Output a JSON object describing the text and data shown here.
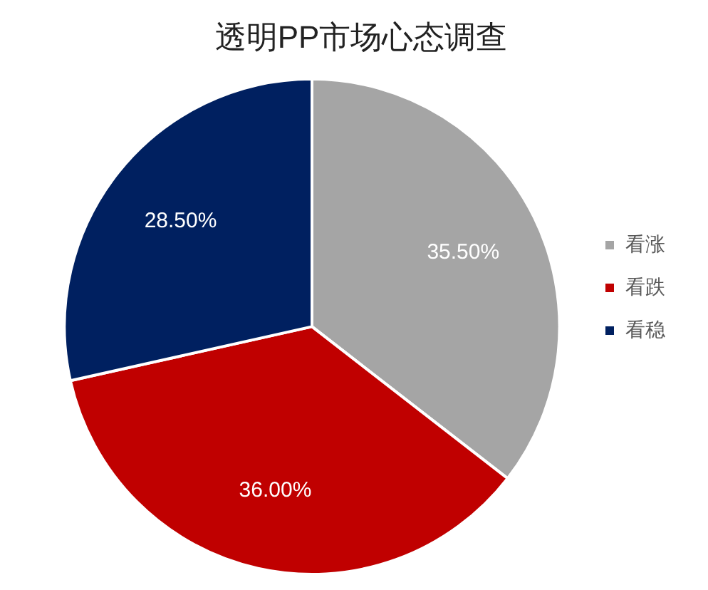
{
  "chart_data": {
    "type": "pie",
    "title": "透明PP市场心态调查",
    "categories": [
      "看涨",
      "看跌",
      "看稳"
    ],
    "values": [
      35.5,
      36.0,
      28.5
    ],
    "colors": [
      "#a5a5a5",
      "#c00000",
      "#002060"
    ],
    "value_labels": [
      "35.50%",
      "36.00%",
      "28.50%"
    ],
    "legend": "right"
  }
}
